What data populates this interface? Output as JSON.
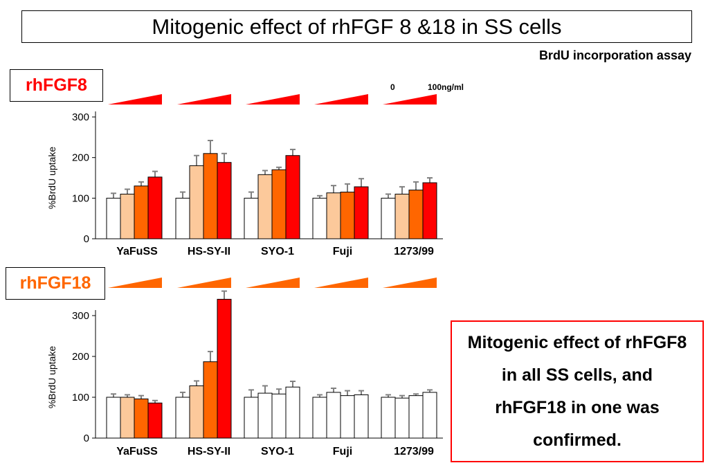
{
  "title": "Mitogenic effect of rhFGF 8 &18 in SS cells",
  "subtitle": "BrdU incorporation assay",
  "concentration": {
    "low": "0",
    "high": "100ng/ml"
  },
  "conclusion": "Mitogenic effect of rhFGF8 in all SS cells, and rhFGF18 in one was confirmed.",
  "colors": {
    "fgf8_label": "#ff0000",
    "fgf18_label": "#ff6600"
  },
  "chart_data": [
    {
      "type": "bar",
      "panel_label": "rhFGF8",
      "ylabel": "%BrdU uptake",
      "ylim": [
        0,
        300
      ],
      "yticks": [
        0,
        100,
        200,
        300
      ],
      "categories": [
        "YaFuSS",
        "HS-SY-II",
        "SYO-1",
        "Fuji",
        "1273/99"
      ],
      "dose_ramp_color": "#ff0000",
      "bar_colors": [
        "#ffffff",
        "#fcc99b",
        "#ff6600",
        "#ff0000"
      ],
      "series": [
        {
          "values": [
            100,
            100,
            100,
            100,
            100
          ],
          "errors": [
            12,
            15,
            15,
            6,
            10
          ]
        },
        {
          "values": [
            110,
            180,
            158,
            113,
            110
          ],
          "errors": [
            12,
            25,
            10,
            18,
            18
          ]
        },
        {
          "values": [
            130,
            210,
            170,
            115,
            120
          ],
          "errors": [
            10,
            32,
            6,
            20,
            20
          ]
        },
        {
          "values": [
            152,
            188,
            205,
            128,
            138
          ],
          "errors": [
            14,
            22,
            15,
            20,
            12
          ]
        }
      ]
    },
    {
      "type": "bar",
      "panel_label": "rhFGF18",
      "ylabel": "%BrdU uptake",
      "ylim": [
        0,
        300
      ],
      "yticks": [
        0,
        100,
        200,
        300
      ],
      "categories": [
        "YaFuSS",
        "HS-SY-II",
        "SYO-1",
        "Fuji",
        "1273/99"
      ],
      "dose_ramp_color": "#ff6600",
      "bar_colors": [
        "#ffffff",
        "#fcc99b",
        "#ff6600",
        "#ff0000"
      ],
      "series": [
        {
          "values": [
            100,
            100,
            100,
            100,
            100
          ],
          "errors": [
            8,
            12,
            18,
            6,
            6
          ]
        },
        {
          "values": [
            100,
            128,
            110,
            112,
            98
          ],
          "errors": [
            6,
            12,
            18,
            10,
            6
          ]
        },
        {
          "values": [
            96,
            187,
            108,
            104,
            104
          ],
          "errors": [
            8,
            25,
            12,
            12,
            4
          ]
        },
        {
          "values": [
            86,
            340,
            125,
            106,
            112
          ],
          "errors": [
            6,
            20,
            14,
            10,
            6
          ]
        }
      ],
      "white_bar_groups": [
        "SYO-1",
        "Fuji",
        "1273/99"
      ],
      "white_bar_groups_note": ""
    }
  ]
}
